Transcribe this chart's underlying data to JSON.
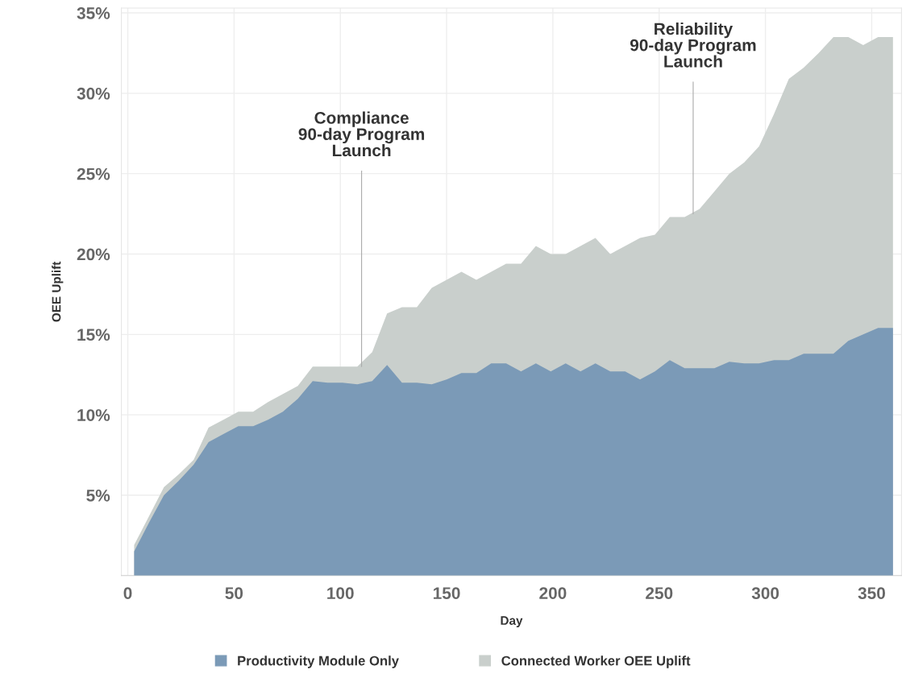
{
  "chart_data": {
    "type": "area",
    "xlabel": "Day",
    "ylabel": "OEE Uplift",
    "x": [
      3,
      10,
      17,
      24,
      31,
      38,
      45,
      52,
      59,
      66,
      73,
      80,
      87,
      94,
      101,
      108,
      115,
      122,
      129,
      136,
      143,
      150,
      157,
      164,
      171,
      178,
      185,
      192,
      199,
      206,
      213,
      220,
      227,
      234,
      241,
      248,
      255,
      262,
      269,
      276,
      283,
      290,
      297,
      304,
      311,
      318,
      325,
      332,
      339,
      346,
      353,
      360
    ],
    "series": [
      {
        "name": "Productivity Module Only",
        "color": "#7b9ab7",
        "values": [
          1.5,
          3.3,
          5.0,
          5.9,
          6.9,
          8.3,
          8.8,
          9.3,
          9.3,
          9.7,
          10.2,
          11.0,
          12.1,
          12.0,
          12.0,
          11.9,
          12.1,
          13.1,
          12.0,
          12.0,
          11.9,
          12.2,
          12.6,
          12.6,
          13.2,
          13.2,
          12.7,
          13.2,
          12.7,
          13.2,
          12.7,
          13.2,
          12.7,
          12.7,
          12.2,
          12.7,
          13.4,
          12.9,
          12.9,
          12.9,
          13.3,
          13.2,
          13.2,
          13.4,
          13.4,
          13.8,
          13.8,
          13.8,
          14.6,
          15.0,
          15.4,
          15.4
        ]
      },
      {
        "name": "Connected Worker OEE Uplift",
        "color": "#c9cfcc",
        "values": [
          1.9,
          3.7,
          5.5,
          6.3,
          7.2,
          9.2,
          9.7,
          10.2,
          10.2,
          10.8,
          11.3,
          11.8,
          13.0,
          13.0,
          13.0,
          13.0,
          13.9,
          16.3,
          16.7,
          16.7,
          17.9,
          18.4,
          18.9,
          18.4,
          18.9,
          19.4,
          19.4,
          20.5,
          20.0,
          20.0,
          20.5,
          21.0,
          20.0,
          20.5,
          21.0,
          21.2,
          22.3,
          22.3,
          22.8,
          23.9,
          25.0,
          25.7,
          26.7,
          28.7,
          30.9,
          31.6,
          32.5,
          33.5,
          33.5,
          33.0,
          33.5,
          33.5
        ]
      }
    ],
    "xlim": [
      -3,
      364
    ],
    "xticks": [
      0,
      50,
      100,
      150,
      200,
      250,
      300,
      350
    ],
    "ylim": [
      0,
      35.3
    ],
    "yticks": [
      {
        "value": 5,
        "label": "5%"
      },
      {
        "value": 10,
        "label": "10%"
      },
      {
        "value": 15,
        "label": "15%"
      },
      {
        "value": 20,
        "label": "20%"
      },
      {
        "value": 25,
        "label": "25%"
      },
      {
        "value": 30,
        "label": "30%"
      },
      {
        "value": 35,
        "label": "35%"
      }
    ],
    "annotations": [
      {
        "text": "Compliance\n90-day Program\nLaunch",
        "x": 110,
        "y": 13.0
      },
      {
        "text": "Reliability\n90-day Program\nLaunch",
        "x": 266,
        "y": 22.5
      }
    ],
    "grid": true,
    "legend": "bottom"
  }
}
